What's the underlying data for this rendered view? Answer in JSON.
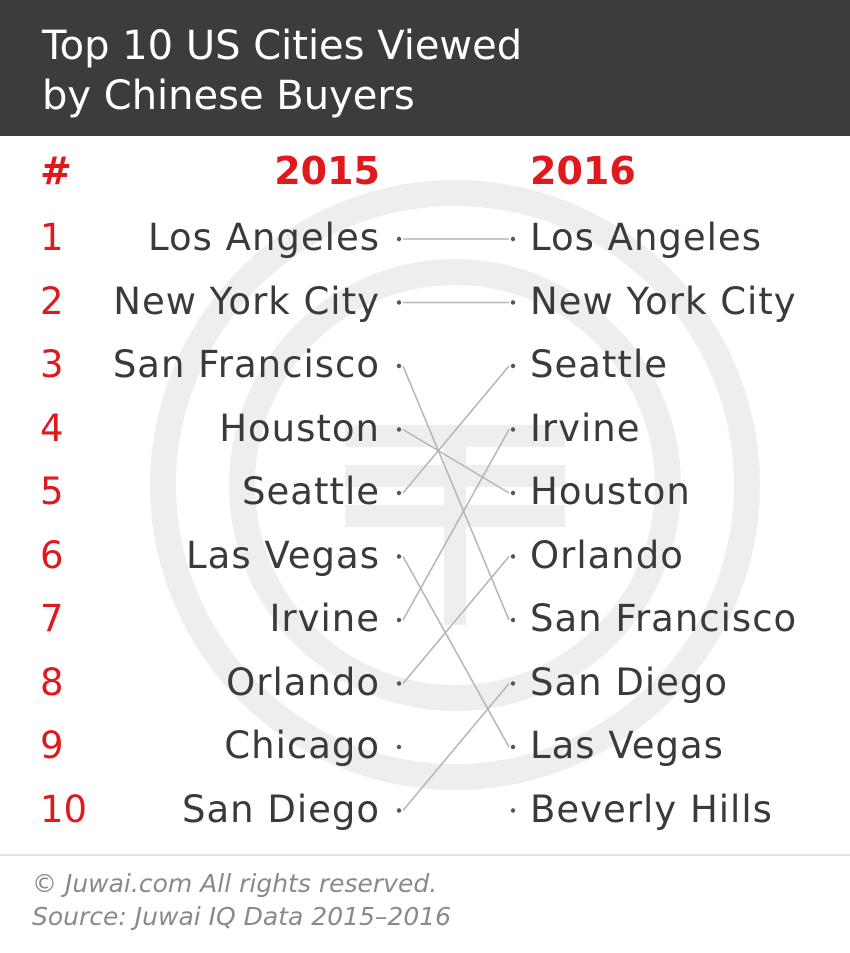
{
  "header": {
    "title_line1": "Top 10 US Cities Viewed",
    "title_line2": "by Chinese Buyers"
  },
  "footer": {
    "copyright": "© Juwai.com All rights reserved.",
    "source": "Source: Juwai IQ Data 2015–2016"
  },
  "colors": {
    "header_bg": "#3c3c3c",
    "accent_red": "#e0191f",
    "text": "#3a3a3a",
    "line": "#b5b5b5",
    "watermark": "#eeeeee",
    "footer_text": "#8a8a8a"
  },
  "icons": {
    "watermark": "juwai-logo-watermark"
  },
  "chart_data": {
    "type": "slope",
    "rank_header": "#",
    "columns": [
      "2015",
      "2016"
    ],
    "ranks": [
      "1",
      "2",
      "3",
      "4",
      "5",
      "6",
      "7",
      "8",
      "9",
      "10"
    ],
    "rankings": {
      "2015": [
        "Los Angeles",
        "New York City",
        "San Francisco",
        "Houston",
        "Seattle",
        "Las Vegas",
        "Irvine",
        "Orlando",
        "Chicago",
        "San Diego"
      ],
      "2016": [
        "Los Angeles",
        "New York City",
        "Seattle",
        "Irvine",
        "Houston",
        "Orlando",
        "San Francisco",
        "San Diego",
        "Las Vegas",
        "Beverly Hills"
      ]
    }
  }
}
